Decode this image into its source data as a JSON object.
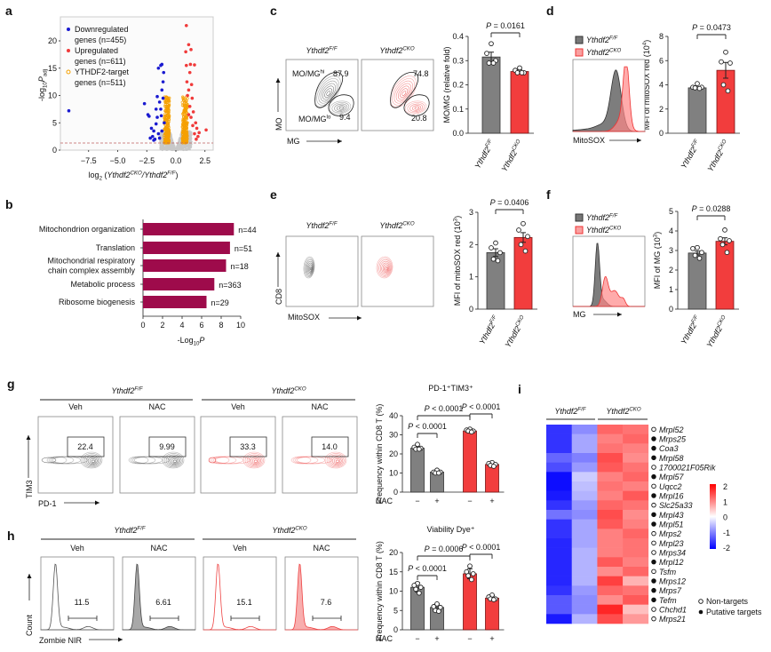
{
  "panel_letters": {
    "a": "a",
    "b": "b",
    "c": "c",
    "d": "d",
    "e": "e",
    "f": "f",
    "g": "g",
    "h": "h",
    "i": "i"
  },
  "genotypes": {
    "base": "Ythdf2",
    "ff": "F/F",
    "cko": "CKO"
  },
  "panel_c": {
    "y_axis": "MO",
    "x_axis": "MG",
    "gate_label": "MO/MG",
    "hi_sup": "hi",
    "lo_sup": "lo",
    "ff_hi": "87.9",
    "ff_lo": "9.4",
    "cko_hi": "74.8",
    "cko_lo": "20.8"
  },
  "panel_d": {
    "x_axis": "MitoSOX"
  },
  "panel_e": {
    "y_axis": "CD8",
    "x_axis": "MitoSOX"
  },
  "panel_f": {
    "x_axis": "MG"
  },
  "panel_g": {
    "conditions": [
      "Veh",
      "NAC"
    ],
    "gate_values": [
      "22.4",
      "9.99",
      "33.3",
      "14.0"
    ],
    "y_axis": "TIM3",
    "x_axis": "PD-1"
  },
  "panel_h": {
    "conditions": [
      "Veh",
      "NAC"
    ],
    "gate_values": [
      "11.5",
      "6.61",
      "15.1",
      "7.6"
    ],
    "y_axis": "Count",
    "x_axis": "Zombie NIR"
  },
  "colors": {
    "ff": "#808080",
    "cko": "#f23d3d",
    "down": "#1a1ad0",
    "up": "#f03a3a",
    "target": "#f5a000",
    "go_bar": "#9e0b4b"
  },
  "chart_data": [
    {
      "type": "scatter",
      "xlabel_parts": [
        "log",
        "2",
        " (",
        "Ythdf2",
        "CKO",
        "/Ythdf2",
        "F/F",
        ")"
      ],
      "ylabel_parts": [
        "-log",
        "10",
        "P",
        "adj"
      ],
      "xticks": [
        -7.5,
        -5.0,
        -2.5,
        0.0,
        2.5
      ],
      "xtick_labels": [
        "−7.5",
        "−5.0",
        "−2.5",
        "0.0",
        "2.5"
      ],
      "yticks": [
        0,
        5,
        10,
        15,
        20
      ],
      "ytick_labels": [
        "0",
        "5",
        "10",
        "15",
        "20"
      ],
      "xlim": [
        -9.9,
        3.2
      ],
      "ylim": [
        -1,
        24.5
      ],
      "threshold_y": 1.3,
      "legend": [
        {
          "lines": [
            "Downregulated",
            "genes (n=455)"
          ],
          "marker": "filled",
          "color": "#1a1ad0"
        },
        {
          "lines": [
            "Upregulated",
            "genes (n=611)"
          ],
          "marker": "filled",
          "color": "#f03a3a"
        },
        {
          "lines": [
            "YTHDF2-target",
            "genes (n=511)"
          ],
          "marker": "open",
          "color": "#f5a000"
        }
      ],
      "legend_position": "top-left",
      "series": [
        {
          "name": "Downregulated genes (n=455)",
          "points": [
            [
              -9.2,
              7.2
            ],
            [
              -2.7,
              8.5
            ],
            [
              -2.4,
              6.5
            ],
            [
              -2.3,
              6.2
            ],
            [
              -2.1,
              4.0
            ],
            [
              -2.0,
              2.5
            ],
            [
              -1.9,
              3.5
            ],
            [
              -1.7,
              4.8
            ],
            [
              -1.5,
              15.0
            ],
            [
              -1.3,
              15.5
            ],
            [
              -1.2,
              15.7
            ],
            [
              -1.05,
              14.2
            ],
            [
              -1.6,
              9.8
            ],
            [
              -1.4,
              8.8
            ],
            [
              -1.2,
              11.0
            ],
            [
              -1.3,
              7.5
            ],
            [
              -1.8,
              2.0
            ],
            [
              -1.6,
              6.0
            ],
            [
              -1.1,
              12.5
            ],
            [
              -1.9,
              1.8
            ],
            [
              -1.5,
              3.0
            ],
            [
              -1.0,
              5.0
            ],
            [
              -1.2,
              3.5
            ],
            [
              -1.4,
              2.2
            ],
            [
              -2.2,
              2.2
            ],
            [
              -1.7,
              7.5
            ],
            [
              -1.1,
              9.5
            ],
            [
              -1.25,
              6.3
            ]
          ]
        },
        {
          "name": "Upregulated genes (n=611)",
          "points": [
            [
              0.9,
              22.8
            ],
            [
              1.1,
              19.3
            ],
            [
              1.3,
              18.4
            ],
            [
              0.85,
              18.0
            ],
            [
              1.6,
              15.6
            ],
            [
              1.25,
              15.7
            ],
            [
              0.9,
              15.5
            ],
            [
              1.2,
              14.2
            ],
            [
              2.6,
              3.7
            ],
            [
              0.95,
              12.5
            ],
            [
              1.1,
              11.0
            ],
            [
              1.4,
              9.5
            ],
            [
              1.5,
              7.0
            ],
            [
              1.7,
              5.0
            ],
            [
              1.8,
              4.0
            ],
            [
              1.9,
              2.5
            ],
            [
              1.3,
              6.0
            ],
            [
              1.6,
              3.0
            ],
            [
              1.2,
              8.0
            ],
            [
              1.0,
              10.0
            ],
            [
              1.45,
              4.5
            ],
            [
              1.75,
              2.0
            ],
            [
              2.0,
              3.2
            ],
            [
              1.1,
              6.5
            ],
            [
              1.35,
              12.0
            ]
          ]
        }
      ]
    },
    {
      "type": "bar",
      "orientation": "horizontal",
      "categories": [
        [
          "Mitochondrion organization"
        ],
        [
          "Translation"
        ],
        [
          "Mitochondrial respiratory",
          "chain complex assembly"
        ],
        [
          "Metabolic process"
        ],
        [
          "Ribosome biogenesis"
        ]
      ],
      "values": [
        9.3,
        8.9,
        8.5,
        7.3,
        6.5
      ],
      "counts": [
        "n=44",
        "n=51",
        "n=18",
        "n=363",
        "n=29"
      ],
      "xlabel_parts": [
        "-Log",
        "10",
        "P"
      ],
      "xlim": [
        0,
        10
      ],
      "xtick_labels": [
        "0",
        "2",
        "4",
        "6",
        "8",
        "10"
      ]
    },
    {
      "type": "bar",
      "categories": [
        "Ythdf2 F/F",
        "Ythdf2 CKO"
      ],
      "values": [
        0.315,
        0.255
      ],
      "errors": [
        0.02,
        0.008
      ],
      "points": [
        [
          0.37,
          0.33,
          0.3,
          0.29,
          0.29
        ],
        [
          0.27,
          0.26,
          0.25,
          0.25,
          0.25
        ]
      ],
      "ylabel_parts": [
        "MO/MG (relative fold)"
      ],
      "ylim": [
        0,
        0.4
      ],
      "ytick_labels": [
        "0.0",
        "0.1",
        "0.2",
        "0.3",
        "0.4"
      ],
      "comparisons": [
        {
          "groups": [
            0,
            1
          ],
          "symbol": "P",
          "text": " = 0.0161"
        }
      ]
    },
    {
      "type": "bar",
      "categories": [
        "Ythdf2 F/F",
        "Ythdf2 CKO"
      ],
      "values": [
        3.75,
        5.2
      ],
      "errors": [
        0.08,
        0.65
      ],
      "points": [
        [
          4.1,
          3.8,
          3.8,
          3.75,
          3.7
        ],
        [
          6.7,
          5.9,
          5.8,
          4.0,
          3.5
        ]
      ],
      "ylabel_parts": [
        "MFI of mitoSOX red (10",
        "4",
        ")"
      ],
      "ylim": [
        0,
        8
      ],
      "ytick_labels": [
        "0",
        "2",
        "4",
        "6",
        "8"
      ],
      "comparisons": [
        {
          "groups": [
            0,
            1
          ],
          "symbol": "P",
          "text": " = 0.0473"
        }
      ]
    },
    {
      "type": "bar",
      "categories": [
        "Ythdf2 F/F",
        "Ythdf2 CKO"
      ],
      "values": [
        1.75,
        2.22
      ],
      "errors": [
        0.12,
        0.15
      ],
      "points": [
        [
          2.05,
          1.9,
          1.75,
          1.55,
          1.5
        ],
        [
          2.65,
          2.45,
          2.25,
          2.0,
          1.8
        ]
      ],
      "ylabel_parts": [
        "MFI of mitoSOX red (10",
        "3",
        ")"
      ],
      "ylim": [
        0,
        3
      ],
      "ytick_labels": [
        "0",
        "1",
        "2",
        "3"
      ],
      "comparisons": [
        {
          "groups": [
            0,
            1
          ],
          "symbol": "P",
          "text": " = 0.0406"
        }
      ]
    },
    {
      "type": "bar",
      "categories": [
        "Ythdf2 F/F",
        "Ythdf2 CKO"
      ],
      "values": [
        2.87,
        3.47
      ],
      "errors": [
        0.1,
        0.18
      ],
      "points": [
        [
          3.15,
          3.1,
          2.9,
          2.75,
          2.6
        ],
        [
          4.05,
          3.6,
          3.5,
          3.3,
          2.9
        ]
      ],
      "ylabel_parts": [
        "MFI of MG (10",
        "3",
        ")"
      ],
      "ylim": [
        0,
        5
      ],
      "ytick_labels": [
        "0",
        "1",
        "2",
        "3",
        "4",
        "5"
      ],
      "comparisons": [
        {
          "groups": [
            0,
            1
          ],
          "symbol": "P",
          "text": " = 0.0288"
        }
      ]
    },
    {
      "type": "bar",
      "title": "PD-1⁺TIM3⁺",
      "categories": [
        "Ythdf2 F/F Veh",
        "Ythdf2 F/F NAC",
        "Ythdf2 CKO Veh",
        "Ythdf2 CKO NAC"
      ],
      "values": [
        23.0,
        10.5,
        32.0,
        14.5
      ],
      "errors": [
        1.0,
        0.6,
        0.6,
        0.8
      ],
      "points": [
        [
          25,
          23.5,
          23,
          22.5,
          22.5
        ],
        [
          11.5,
          10.5,
          10.5,
          10,
          10
        ],
        [
          33,
          32.5,
          32,
          32,
          31.5
        ],
        [
          15.5,
          15,
          14.5,
          14,
          13.5
        ]
      ],
      "ylabel_parts": [
        "Frequency within CD8 T (%)"
      ],
      "ylim": [
        0,
        40
      ],
      "ytick_labels": [
        "0",
        "10",
        "20",
        "30",
        "40"
      ],
      "treatment_label": "NAC",
      "treatment_signs": [
        "−",
        "+",
        "−",
        "+"
      ],
      "comparisons": [
        {
          "groups": [
            0,
            1
          ],
          "symbol": "P",
          "text": " < 0.0001"
        },
        {
          "groups": [
            0,
            2
          ],
          "symbol": "P",
          "text": " < 0.0001"
        },
        {
          "groups": [
            2,
            3
          ],
          "symbol": "P",
          "text": " < 0.0001"
        }
      ]
    },
    {
      "type": "bar",
      "title": "Viability Dye⁺",
      "categories": [
        "Ythdf2 F/F Veh",
        "Ythdf2 F/F NAC",
        "Ythdf2 CKO Veh",
        "Ythdf2 CKO NAC"
      ],
      "values": [
        11.0,
        5.8,
        14.5,
        8.2
      ],
      "errors": [
        1.2,
        0.9,
        1.3,
        0.6
      ],
      "points": [
        [
          12,
          11.5,
          11,
          10.5,
          9.5
        ],
        [
          6.7,
          6,
          5.8,
          5,
          4.8
        ],
        [
          16.5,
          15,
          14.5,
          14,
          13
        ],
        [
          9,
          8.5,
          8,
          8,
          7.8
        ]
      ],
      "ylabel_parts": [
        "Frequency within CD8 T (%)"
      ],
      "ylim": [
        0,
        20
      ],
      "ytick_labels": [
        "0",
        "5",
        "10",
        "15",
        "20"
      ],
      "treatment_label": "NAC",
      "treatment_signs": [
        "−",
        "+",
        "−",
        "+"
      ],
      "comparisons": [
        {
          "groups": [
            0,
            1
          ],
          "symbol": "P",
          "text": " < 0.0001"
        },
        {
          "groups": [
            0,
            2
          ],
          "symbol": "P",
          "text": " = 0.0006"
        },
        {
          "groups": [
            2,
            3
          ],
          "symbol": "P",
          "text": " < 0.0001"
        }
      ]
    },
    {
      "type": "heatmap",
      "column_groups": [
        "Ythdf2 F/F",
        "Ythdf2 CKO"
      ],
      "rows": [
        "Mrpl52",
        "Mrps25",
        "Coa3",
        "Mrpl58",
        "1700021F05Rik",
        "Mrpl57",
        "Uqcc2",
        "Mrpl16",
        "Slc25a33",
        "Mrpl43",
        "Mrpl51",
        "Mrps2",
        "Mrpl23",
        "Mrps34",
        "Mrpl12",
        "Tsfm",
        "Mrps12",
        "Mrps7",
        "Tefm",
        "Chchd1",
        "Mrps21"
      ],
      "putative_target": [
        false,
        true,
        true,
        true,
        false,
        true,
        false,
        true,
        false,
        true,
        true,
        false,
        false,
        false,
        true,
        false,
        true,
        true,
        true,
        false,
        false
      ],
      "values": [
        [
          -1.6,
          -0.9,
          1.2,
          1.1
        ],
        [
          -1.6,
          -0.7,
          1.0,
          1.2
        ],
        [
          -1.6,
          -0.7,
          1.1,
          1.0
        ],
        [
          -1.2,
          -1.0,
          1.4,
          0.9
        ],
        [
          -1.4,
          -0.8,
          1.3,
          1.1
        ],
        [
          -1.9,
          -0.4,
          1.0,
          1.2
        ],
        [
          -1.9,
          -0.5,
          1.1,
          1.0
        ],
        [
          -1.8,
          -0.6,
          1.0,
          1.3
        ],
        [
          -1.6,
          -0.8,
          1.2,
          1.1
        ],
        [
          -1.1,
          -0.9,
          1.4,
          0.9
        ],
        [
          -1.6,
          -0.7,
          1.3,
          1.0
        ],
        [
          -1.6,
          -0.7,
          1.0,
          1.2
        ],
        [
          -1.7,
          -0.7,
          1.0,
          1.1
        ],
        [
          -1.7,
          -0.6,
          1.0,
          1.1
        ],
        [
          -1.7,
          -0.6,
          1.3,
          1.0
        ],
        [
          -1.7,
          -0.6,
          0.9,
          1.2
        ],
        [
          -1.7,
          -0.6,
          1.5,
          0.6
        ],
        [
          -1.6,
          -0.8,
          1.2,
          1.1
        ],
        [
          -1.3,
          -0.9,
          0.9,
          1.3
        ],
        [
          -1.3,
          -0.9,
          1.7,
          0.5
        ],
        [
          -1.8,
          -0.6,
          1.4,
          0.8
        ]
      ],
      "color_range": [
        -2,
        2
      ],
      "colorbar_labels": [
        "2",
        "1",
        "0",
        "-1",
        "-2"
      ],
      "colors": {
        "low": "#0000ff",
        "mid": "#ffffff",
        "high": "#ff0000"
      },
      "legend": {
        "open": "Non-targets",
        "filled": "Putative targets"
      }
    }
  ]
}
